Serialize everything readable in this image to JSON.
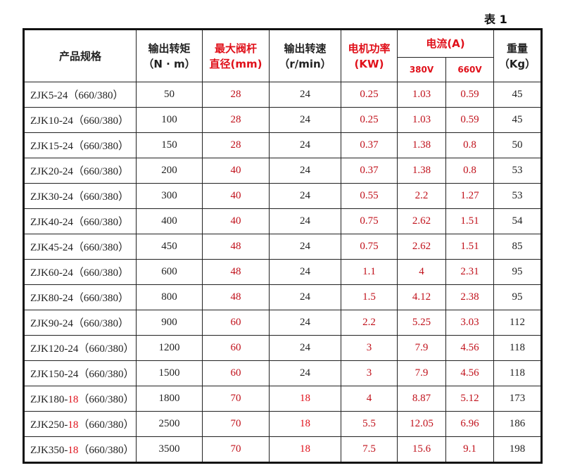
{
  "caption": "表 1",
  "headers": {
    "model": "产品规格",
    "torque": "输出转矩",
    "torque_unit": "（N · m）",
    "stem": "最大阀杆",
    "stem2": "直径(mm)",
    "speed": "输出转速",
    "speed_unit": "（r/min）",
    "power": "电机功率",
    "power_unit": "(KW)",
    "current": "电流(A)",
    "v380": "380V",
    "v660": "660V",
    "weight": "重量",
    "weight_unit": "（Kg）"
  },
  "colors": {
    "red": "#e0101a",
    "text": "#222222"
  },
  "rows": [
    {
      "model_prefix": "ZJK5-24",
      "model_red": "",
      "model_suffix": "（660/380）",
      "torque": "50",
      "stem": "28",
      "speed": "24",
      "power": "0.25",
      "i380": "1.03",
      "i660": "0.59",
      "weight": "45"
    },
    {
      "model_prefix": "ZJK10-24",
      "model_red": "",
      "model_suffix": "（660/380）",
      "torque": "100",
      "stem": "28",
      "speed": "24",
      "power": "0.25",
      "i380": "1.03",
      "i660": "0.59",
      "weight": "45"
    },
    {
      "model_prefix": "ZJK15-24",
      "model_red": "",
      "model_suffix": "（660/380）",
      "torque": "150",
      "stem": "28",
      "speed": "24",
      "power": "0.37",
      "i380": "1.38",
      "i660": "0.8",
      "weight": "50"
    },
    {
      "model_prefix": "ZJK20-24",
      "model_red": "",
      "model_suffix": "（660/380）",
      "torque": "200",
      "stem": "40",
      "speed": "24",
      "power": "0.37",
      "i380": "1.38",
      "i660": "0.8",
      "weight": "53"
    },
    {
      "model_prefix": "ZJK30-24",
      "model_red": "",
      "model_suffix": "（660/380）",
      "torque": "300",
      "stem": "40",
      "speed": "24",
      "power": "0.55",
      "i380": "2.2",
      "i660": "1.27",
      "weight": "53"
    },
    {
      "model_prefix": "ZJK40-24",
      "model_red": "",
      "model_suffix": "（660/380）",
      "torque": "400",
      "stem": "40",
      "speed": "24",
      "power": "0.75",
      "i380": "2.62",
      "i660": "1.51",
      "weight": "54"
    },
    {
      "model_prefix": "ZJK45-24",
      "model_red": "",
      "model_suffix": "（660/380）",
      "torque": "450",
      "stem": "48",
      "speed": "24",
      "power": "0.75",
      "i380": "2.62",
      "i660": "1.51",
      "weight": "85"
    },
    {
      "model_prefix": "ZJK60-24",
      "model_red": "",
      "model_suffix": "（660/380）",
      "torque": "600",
      "stem": "48",
      "speed": "24",
      "power": "1.1",
      "i380": "4",
      "i660": "2.31",
      "weight": "95"
    },
    {
      "model_prefix": "ZJK80-24",
      "model_red": "",
      "model_suffix": "（660/380）",
      "torque": "800",
      "stem": "48",
      "speed": "24",
      "power": "1.5",
      "i380": "4.12",
      "i660": "2.38",
      "weight": "95"
    },
    {
      "model_prefix": "ZJK90-24",
      "model_red": "",
      "model_suffix": "（660/380）",
      "torque": "900",
      "stem": "60",
      "speed": "24",
      "power": "2.2",
      "i380": "5.25",
      "i660": "3.03",
      "weight": "112"
    },
    {
      "model_prefix": "ZJK120-24",
      "model_red": "",
      "model_suffix": "（660/380）",
      "torque": "1200",
      "stem": "60",
      "speed": "24",
      "power": "3",
      "i380": "7.9",
      "i660": "4.56",
      "weight": "118"
    },
    {
      "model_prefix": "ZJK150-24",
      "model_red": "",
      "model_suffix": "（660/380）",
      "torque": "1500",
      "stem": "60",
      "speed": "24",
      "power": "3",
      "i380": "7.9",
      "i660": "4.56",
      "weight": "118"
    },
    {
      "model_prefix": "ZJK180-",
      "model_red": "18",
      "model_suffix": "（660/380）",
      "torque": "1800",
      "stem": "70",
      "speed": "18",
      "power": "4",
      "i380": "8.87",
      "i660": "5.12",
      "weight": "173"
    },
    {
      "model_prefix": "ZJK250-",
      "model_red": "18",
      "model_suffix": "（660/380）",
      "torque": "2500",
      "stem": "70",
      "speed": "18",
      "power": "5.5",
      "i380": "12.05",
      "i660": "6.96",
      "weight": "186"
    },
    {
      "model_prefix": "ZJK350-",
      "model_red": "18",
      "model_suffix": "（660/380）",
      "torque": "3500",
      "stem": "70",
      "speed": "18",
      "power": "7.5",
      "i380": "15.6",
      "i660": "9.1",
      "weight": "198"
    }
  ]
}
